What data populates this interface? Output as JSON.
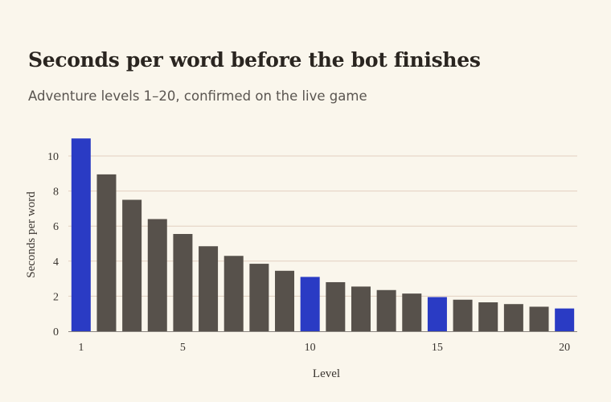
{
  "title": "Seconds per word before the bot finishes",
  "subtitle": "Adventure levels 1–20, confirmed on the live game",
  "colors": {
    "background": "#faf6ec",
    "bar_default": "#57514b",
    "bar_highlight": "#2a3bc4",
    "gridline": "#e2cfc0",
    "axis": "#8a8580"
  },
  "chart_data": {
    "type": "bar",
    "title": "Seconds per word before the bot finishes",
    "subtitle": "Adventure levels 1–20, confirmed on the live game",
    "xlabel": "Level",
    "ylabel": "Seconds per word",
    "categories": [
      1,
      2,
      3,
      4,
      5,
      6,
      7,
      8,
      9,
      10,
      11,
      12,
      13,
      14,
      15,
      16,
      17,
      18,
      19,
      20
    ],
    "values": [
      11.0,
      8.95,
      7.5,
      6.4,
      5.55,
      4.85,
      4.3,
      3.85,
      3.45,
      3.1,
      2.8,
      2.55,
      2.35,
      2.15,
      1.95,
      1.8,
      1.65,
      1.55,
      1.4,
      1.3
    ],
    "highlighted_levels": [
      1,
      10,
      15,
      20
    ],
    "ylim": [
      0,
      11.2
    ],
    "yticks": [
      0,
      2,
      4,
      6,
      8,
      10
    ],
    "xticks": [
      1,
      5,
      10,
      15,
      20
    ],
    "grid": "horizontal"
  }
}
